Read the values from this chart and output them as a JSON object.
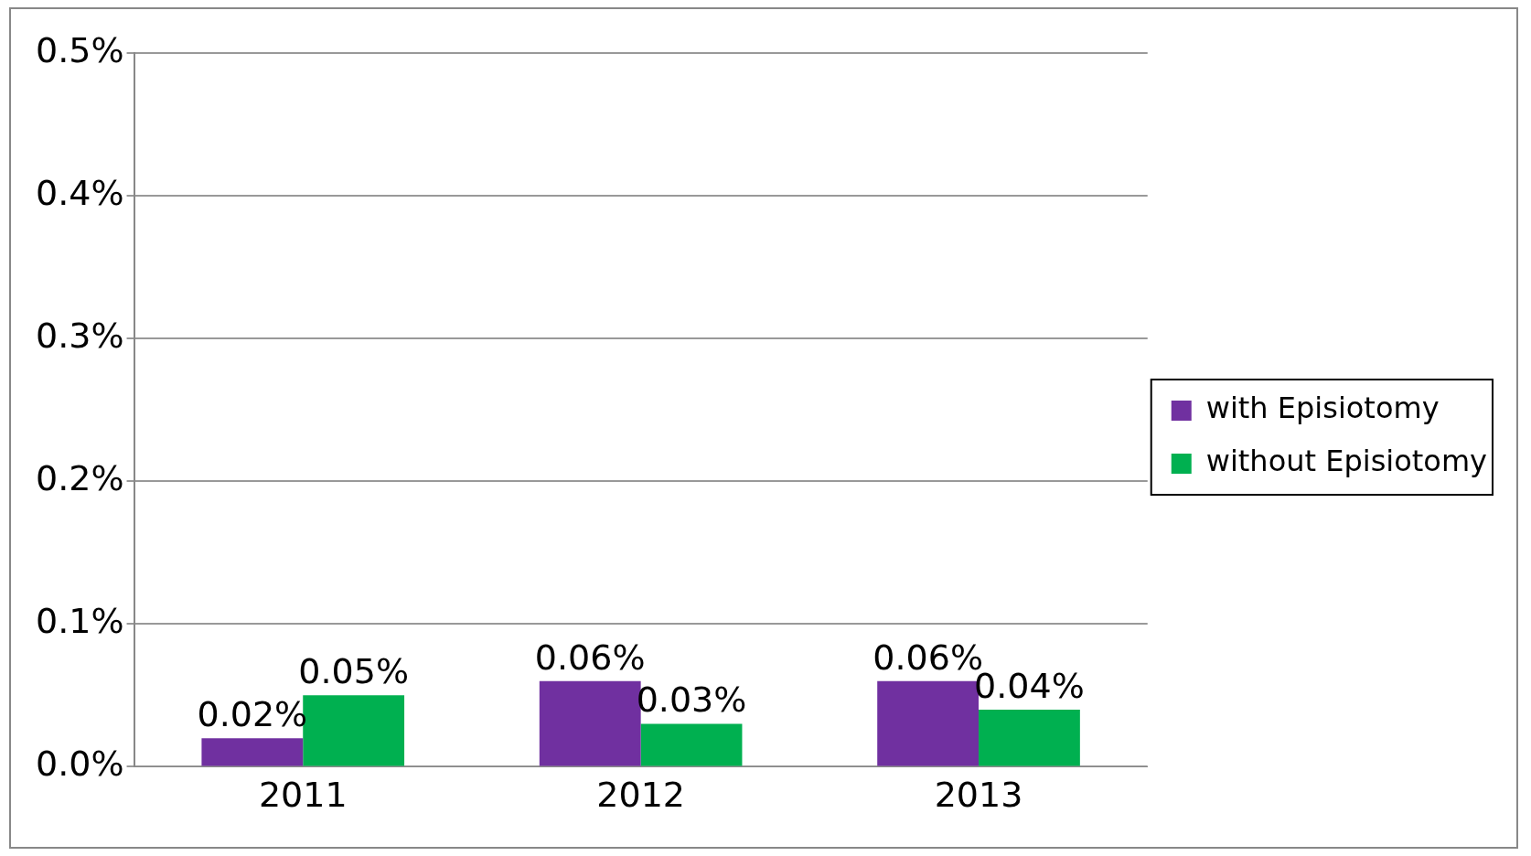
{
  "chart_data": {
    "type": "bar",
    "categories": [
      "2011",
      "2012",
      "2013"
    ],
    "series": [
      {
        "name": "with Episiotomy",
        "color": "#7030a0",
        "values": [
          0.02,
          0.06,
          0.06
        ],
        "value_labels": [
          "0.02%",
          "0.06%",
          "0.06%"
        ]
      },
      {
        "name": "without Episiotomy",
        "color": "#00b050",
        "values": [
          0.05,
          0.03,
          0.04
        ],
        "value_labels": [
          "0.05%",
          "0.03%",
          "0.04%"
        ]
      }
    ],
    "ylim": [
      0,
      0.5
    ],
    "yticks": [
      {
        "value": 0,
        "label": "0.0%"
      },
      {
        "value": 0.1,
        "label": "0.1%"
      },
      {
        "value": 0.2,
        "label": "0.2%"
      },
      {
        "value": 0.3,
        "label": "0.3%"
      },
      {
        "value": 0.4,
        "label": "0.4%"
      },
      {
        "value": 0.5,
        "label": "0.5%"
      }
    ],
    "grid": "y",
    "legend": "right"
  }
}
